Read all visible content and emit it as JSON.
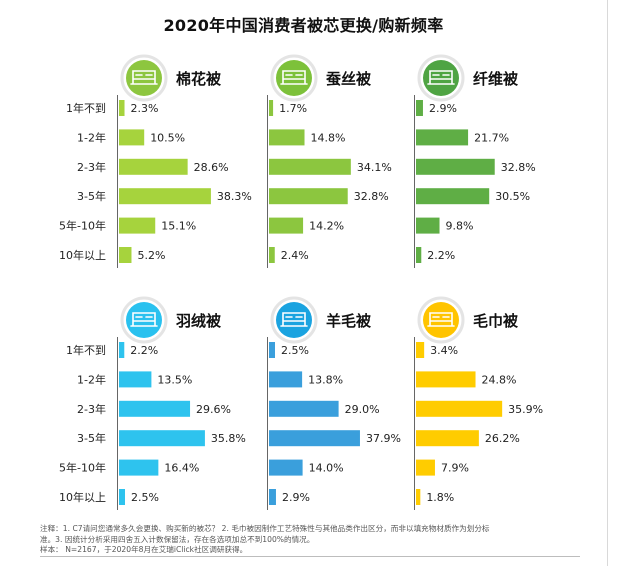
{
  "chart_data": {
    "type": "bar",
    "orientation": "horizontal",
    "title": "2020年中国消费者被芯更换/购新频率",
    "categories": [
      "1年不到",
      "1-2年",
      "2-3年",
      "3-5年",
      "5年-10年",
      "10年以上"
    ],
    "value_suffix": "%",
    "xlim": [
      0,
      40
    ],
    "panels": [
      {
        "name": "棉花被",
        "color": "#a6d33d",
        "icon_color": "#8dc63f",
        "values": [
          2.3,
          10.5,
          28.6,
          38.3,
          15.1,
          5.2
        ]
      },
      {
        "name": "蚕丝被",
        "color": "#8cc63f",
        "icon_color": "#7dc13a",
        "values": [
          1.7,
          14.8,
          34.1,
          32.8,
          14.2,
          2.4
        ]
      },
      {
        "name": "纤维被",
        "color": "#5fae45",
        "icon_color": "#4fa443",
        "values": [
          2.9,
          21.7,
          32.8,
          30.5,
          9.8,
          2.2
        ]
      },
      {
        "name": "羽绒被",
        "color": "#2ec3ee",
        "icon_color": "#29c1ef",
        "values": [
          2.2,
          13.5,
          29.6,
          35.8,
          16.4,
          2.5
        ]
      },
      {
        "name": "羊毛被",
        "color": "#3a9fdc",
        "icon_color": "#1aa3e0",
        "values": [
          2.5,
          13.8,
          29.0,
          37.9,
          14.0,
          2.9
        ]
      },
      {
        "name": "毛巾被",
        "color": "#ffcc00",
        "icon_color": "#ffc400",
        "values": [
          3.4,
          24.8,
          35.9,
          26.2,
          7.9,
          1.8
        ]
      }
    ]
  },
  "footer": {
    "note_line1": "注释：1. C7请问您通常多久会更换、购买新的被芯？ 2. 毛巾被因制作工艺特殊性与其他品类作出区分，而非以填充物材质作为划分标",
    "note_line2": "准。3. 因统计分析采用四舍五入计数保留法，存在各选项加总不到100%的情况。",
    "sample": "样本： N=2167，于2020年8月在艾瑞iClick社区调研获得。"
  }
}
